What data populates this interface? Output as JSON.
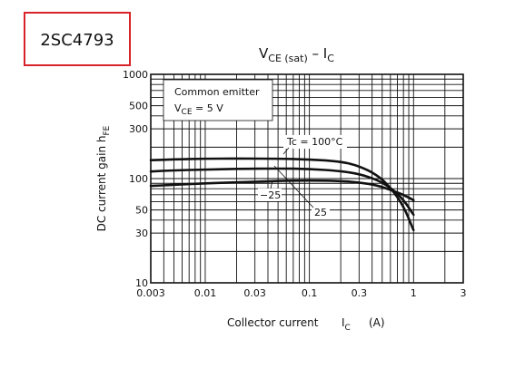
{
  "part_number": "2SC4793",
  "chart_data": {
    "type": "line",
    "title": "VCE (sat) – IC",
    "title_parts": {
      "main": "V",
      "sub": "CE (sat)",
      "sep": " – I",
      "sub2": "C"
    },
    "xlabel": "Collector current",
    "xlabel_symbol": "I",
    "xlabel_sub": "C",
    "xlabel_unit": "(A)",
    "ylabel": "DC current gain",
    "ylabel_symbol": "h",
    "ylabel_sub": "FE",
    "xscale": "log",
    "yscale": "log",
    "xlim": [
      0.003,
      3
    ],
    "ylim": [
      10,
      1000
    ],
    "x_ticks": [
      0.003,
      0.01,
      0.03,
      0.1,
      0.3,
      1,
      3
    ],
    "x_tick_labels": [
      "0.003",
      "0.01",
      "0.03",
      "0.1",
      "0.3",
      "1",
      "3"
    ],
    "y_ticks": [
      10,
      30,
      50,
      100,
      300,
      500,
      1000
    ],
    "y_tick_labels": [
      "10",
      "30",
      "50",
      "100",
      "300",
      "500",
      "1000"
    ],
    "grid": true,
    "annotation_box": {
      "line1": "Common emitter",
      "line2_main": "V",
      "line2_sub": "CE",
      "line2_rest": " = 5 V"
    },
    "series": [
      {
        "name": "Tc = 100°C",
        "x": [
          0.003,
          0.005,
          0.01,
          0.02,
          0.05,
          0.1,
          0.2,
          0.3,
          0.45,
          0.6,
          0.8,
          1.0
        ],
        "y": [
          150,
          153,
          155,
          156,
          155,
          153,
          146,
          132,
          108,
          82,
          55,
          32
        ]
      },
      {
        "name": "25",
        "x": [
          0.003,
          0.005,
          0.01,
          0.02,
          0.05,
          0.1,
          0.2,
          0.3,
          0.45,
          0.6,
          0.8,
          1.0
        ],
        "y": [
          117,
          120,
          122,
          124,
          125,
          124,
          118,
          111,
          97,
          82,
          63,
          45
        ]
      },
      {
        "name": "−25",
        "x": [
          0.003,
          0.005,
          0.01,
          0.02,
          0.05,
          0.1,
          0.2,
          0.3,
          0.45,
          0.6,
          0.8,
          1.0
        ],
        "y": [
          85,
          87,
          90,
          92,
          95,
          96,
          95,
          92,
          86,
          78,
          70,
          62
        ]
      }
    ],
    "curve_labels": {
      "tc100": "Tc = 100°C",
      "minus25": "−25",
      "plus25": "25"
    }
  }
}
